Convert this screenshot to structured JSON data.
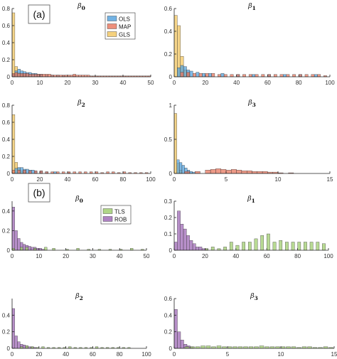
{
  "panel_labels": [
    "(a)",
    "(b)"
  ],
  "colors": {
    "OLS": "#4f9fdc",
    "MAP": "#e8735a",
    "GLS": "#f2c55c",
    "TLS": "#9ccc6a",
    "ROB": "#9b64b4"
  },
  "chart_data": [
    {
      "type": "bar",
      "group": "a",
      "title": "β",
      "subscript": "0",
      "xlim": [
        0,
        50
      ],
      "ylim": [
        0,
        0.8
      ],
      "xticks": [
        0,
        10,
        20,
        30,
        40,
        50
      ],
      "yticks": [
        0,
        0.2,
        0.4,
        0.6,
        0.8
      ],
      "ytick_labels": [
        "0",
        "0.2",
        "0.4",
        "0.6",
        "0.8"
      ],
      "legend": [
        "OLS",
        "MAP",
        "GLS"
      ],
      "legend_position": "top-right",
      "series": [
        {
          "name": "GLS",
          "bins": [
            0,
            1,
            2,
            3,
            4
          ],
          "width": 1,
          "values": [
            0.75,
            0.12,
            0.05,
            0.03,
            0.02
          ]
        },
        {
          "name": "OLS",
          "bins": [
            0,
            1,
            2,
            3,
            4,
            5,
            6,
            7,
            8,
            9,
            10,
            12,
            14,
            16,
            18,
            22
          ],
          "width": 1,
          "values": [
            0.03,
            0.07,
            0.09,
            0.07,
            0.06,
            0.05,
            0.05,
            0.04,
            0.04,
            0.03,
            0.03,
            0.02,
            0.02,
            0.02,
            0.015,
            0.01
          ]
        },
        {
          "name": "MAP",
          "bins": [
            0,
            1,
            2,
            3,
            4,
            5,
            6,
            7,
            8,
            9,
            10,
            11,
            12,
            13,
            14,
            15,
            16,
            17,
            18,
            19,
            20,
            21,
            22,
            23,
            24,
            25,
            26,
            27,
            28,
            29,
            30,
            31,
            32,
            33,
            34,
            35,
            36,
            37,
            38,
            39,
            40,
            41,
            42,
            43,
            44,
            45,
            46,
            47,
            48,
            49
          ],
          "width": 1,
          "values": [
            0.04,
            0.05,
            0.04,
            0.04,
            0.04,
            0.04,
            0.03,
            0.03,
            0.03,
            0.03,
            0.03,
            0.03,
            0.03,
            0.03,
            0.02,
            0.02,
            0.02,
            0.02,
            0.02,
            0.02,
            0.02,
            0.02,
            0.03,
            0.02,
            0.02,
            0.02,
            0.02,
            0.02,
            0.01,
            0.01,
            0.01,
            0.01,
            0.01,
            0.01,
            0.01,
            0.01,
            0.01,
            0.01,
            0.01,
            0.01,
            0.01,
            0.01,
            0.01,
            0.01,
            0.01,
            0.01,
            0.01,
            0.01,
            0.01,
            0.01
          ]
        }
      ]
    },
    {
      "type": "bar",
      "group": "a",
      "title": "β",
      "subscript": "1",
      "xlim": [
        0,
        100
      ],
      "ylim": [
        0,
        0.6
      ],
      "xticks": [
        0,
        20,
        40,
        60,
        80,
        100
      ],
      "yticks": [
        0,
        0.2,
        0.4,
        0.6
      ],
      "ytick_labels": [
        "0",
        "0.2",
        "0.4",
        "0.6"
      ],
      "legend": [],
      "series": [
        {
          "name": "GLS",
          "bins": [
            0,
            2,
            4,
            6,
            8
          ],
          "width": 2,
          "values": [
            0.54,
            0.45,
            0.18,
            0.06,
            0.03
          ]
        },
        {
          "name": "OLS",
          "bins": [
            2,
            4,
            6,
            8,
            10,
            14,
            18,
            22,
            30,
            40,
            50,
            60,
            70,
            80,
            90
          ],
          "width": 2,
          "values": [
            0.08,
            0.1,
            0.09,
            0.06,
            0.05,
            0.04,
            0.03,
            0.03,
            0.03,
            0.02,
            0.02,
            0.02,
            0.02,
            0.02,
            0.02
          ]
        },
        {
          "name": "MAP",
          "bins": [
            4,
            8,
            12,
            16,
            20,
            24,
            28,
            32,
            36,
            40,
            44,
            48,
            52,
            56,
            60,
            64,
            68,
            72,
            76,
            80,
            84,
            88,
            92,
            96
          ],
          "width": 2,
          "values": [
            0.04,
            0.04,
            0.03,
            0.03,
            0.03,
            0.03,
            0.02,
            0.02,
            0.02,
            0.02,
            0.02,
            0.02,
            0.02,
            0.02,
            0.02,
            0.02,
            0.02,
            0.02,
            0.02,
            0.02,
            0.02,
            0.02,
            0.02,
            0.01
          ]
        }
      ]
    },
    {
      "type": "bar",
      "group": "a",
      "title": "β",
      "subscript": "2",
      "xlim": [
        0,
        100
      ],
      "ylim": [
        0,
        0.8
      ],
      "xticks": [
        0,
        20,
        40,
        60,
        80,
        100
      ],
      "yticks": [
        0,
        0.2,
        0.4,
        0.6,
        0.8
      ],
      "ytick_labels": [
        "0",
        "0.2",
        "0.4",
        "0.6",
        "0.8"
      ],
      "legend": [],
      "series": [
        {
          "name": "GLS",
          "bins": [
            0,
            2,
            4,
            6,
            8
          ],
          "width": 2,
          "values": [
            0.69,
            0.13,
            0.06,
            0.03,
            0.02
          ]
        },
        {
          "name": "OLS",
          "bins": [
            2,
            4,
            6,
            8,
            10,
            12,
            14,
            16,
            20,
            24,
            30,
            40
          ],
          "width": 2,
          "values": [
            0.06,
            0.07,
            0.07,
            0.05,
            0.05,
            0.04,
            0.04,
            0.03,
            0.03,
            0.02,
            0.02,
            0.01
          ]
        },
        {
          "name": "MAP",
          "bins": [
            0,
            4,
            8,
            12,
            16,
            20,
            24,
            28,
            32,
            36,
            40,
            44,
            48,
            52,
            56,
            60,
            64,
            68,
            72,
            76,
            80,
            84,
            88,
            92,
            96
          ],
          "width": 2,
          "values": [
            0.04,
            0.04,
            0.04,
            0.03,
            0.03,
            0.03,
            0.02,
            0.02,
            0.02,
            0.02,
            0.02,
            0.02,
            0.02,
            0.02,
            0.02,
            0.02,
            0.01,
            0.02,
            0.02,
            0.01,
            0.02,
            0.01,
            0.01,
            0.01,
            0.01
          ]
        }
      ]
    },
    {
      "type": "bar",
      "group": "a",
      "title": "β",
      "subscript": "3",
      "xlim": [
        0,
        15
      ],
      "ylim": [
        0,
        1
      ],
      "xticks": [
        0,
        5,
        10,
        15
      ],
      "yticks": [
        0,
        0.5,
        1
      ],
      "ytick_labels": [
        "0",
        "0.5",
        "1"
      ],
      "legend": [],
      "series": [
        {
          "name": "GLS",
          "bins": [
            0,
            0.25,
            0.5
          ],
          "width": 0.25,
          "values": [
            0.88,
            0.15,
            0.05
          ]
        },
        {
          "name": "OLS",
          "bins": [
            0.25,
            0.5,
            0.75,
            1,
            1.25,
            1.5,
            1.75
          ],
          "width": 0.25,
          "values": [
            0.2,
            0.16,
            0.12,
            0.08,
            0.05,
            0.03,
            0.02
          ]
        },
        {
          "name": "MAP",
          "bins": [
            1,
            2,
            3,
            3.5,
            4,
            4.5,
            5,
            5.5,
            6,
            6.5,
            7,
            7.5,
            8,
            8.5,
            9,
            9.5,
            10,
            11
          ],
          "width": 0.5,
          "values": [
            0.03,
            0.03,
            0.05,
            0.06,
            0.07,
            0.06,
            0.05,
            0.06,
            0.05,
            0.04,
            0.04,
            0.03,
            0.03,
            0.03,
            0.02,
            0.02,
            0.01,
            0.01
          ]
        }
      ]
    },
    {
      "type": "bar",
      "group": "b",
      "title": "β",
      "subscript": "0",
      "xlim": [
        0,
        50
      ],
      "ylim": [
        0,
        0.5
      ],
      "xticks": [
        0,
        10,
        20,
        30,
        40,
        50
      ],
      "yticks": [
        0,
        0.2,
        0.4
      ],
      "ytick_labels": [
        "0",
        "0.2",
        "0.4"
      ],
      "legend": [
        "TLS",
        "ROB"
      ],
      "legend_position": "top-right",
      "series": [
        {
          "name": "ROB",
          "bins": [
            0,
            1,
            2,
            3,
            4,
            5,
            6,
            7,
            8,
            9,
            10,
            11
          ],
          "width": 1,
          "values": [
            0.44,
            0.2,
            0.12,
            0.08,
            0.06,
            0.05,
            0.04,
            0.03,
            0.03,
            0.02,
            0.02,
            0.01
          ]
        },
        {
          "name": "TLS",
          "bins": [
            0,
            3,
            5,
            8,
            12,
            15,
            20,
            24,
            28,
            32,
            36,
            40,
            44,
            48
          ],
          "width": 1,
          "values": [
            0.02,
            0.03,
            0.03,
            0.02,
            0.03,
            0.02,
            0.01,
            0.02,
            0.01,
            0.01,
            0.01,
            0.01,
            0.02,
            0.01
          ]
        }
      ]
    },
    {
      "type": "bar",
      "group": "b",
      "title": "β",
      "subscript": "1",
      "xlim": [
        0,
        100
      ],
      "ylim": [
        0,
        0.3
      ],
      "xticks": [
        0,
        20,
        40,
        60,
        80,
        100
      ],
      "yticks": [
        0,
        0.1,
        0.2,
        0.3
      ],
      "ytick_labels": [
        "0",
        "0.1",
        "0.2",
        "0.3"
      ],
      "legend": [],
      "series": [
        {
          "name": "ROB",
          "bins": [
            0,
            2,
            4,
            6,
            8,
            10,
            12,
            14,
            16,
            18,
            20
          ],
          "width": 2,
          "values": [
            0.05,
            0.24,
            0.16,
            0.13,
            0.09,
            0.06,
            0.04,
            0.02,
            0.02,
            0.01,
            0.01
          ]
        },
        {
          "name": "TLS",
          "bins": [
            20,
            24,
            28,
            32,
            36,
            40,
            44,
            48,
            52,
            56,
            60,
            64,
            68,
            72,
            76,
            80,
            84,
            88,
            92,
            96
          ],
          "width": 2,
          "values": [
            0.01,
            0.02,
            0.01,
            0.02,
            0.05,
            0.03,
            0.05,
            0.05,
            0.07,
            0.09,
            0.1,
            0.05,
            0.06,
            0.05,
            0.05,
            0.05,
            0.05,
            0.05,
            0.05,
            0.04
          ]
        }
      ]
    },
    {
      "type": "bar",
      "group": "b",
      "title": "β",
      "subscript": "2",
      "xlim": [
        0,
        100
      ],
      "ylim": [
        0,
        0.6
      ],
      "xticks": [
        0,
        20,
        40,
        60,
        80,
        100
      ],
      "yticks": [
        0,
        0.2,
        0.4
      ],
      "ytick_labels": [
        "0",
        "0.2",
        "0.4"
      ],
      "legend": [],
      "series": [
        {
          "name": "ROB",
          "bins": [
            0,
            2,
            4,
            6,
            8,
            10,
            12,
            14,
            16
          ],
          "width": 2,
          "values": [
            0.48,
            0.15,
            0.08,
            0.05,
            0.04,
            0.03,
            0.02,
            0.02,
            0.01
          ]
        },
        {
          "name": "TLS",
          "bins": [
            6,
            10,
            14,
            18,
            22,
            26,
            30,
            34,
            38,
            42,
            46,
            50,
            54,
            58,
            62,
            66,
            70,
            74,
            78,
            82,
            86
          ],
          "width": 2,
          "values": [
            0.02,
            0.03,
            0.02,
            0.01,
            0.02,
            0.01,
            0.01,
            0.01,
            0.01,
            0.02,
            0.01,
            0.01,
            0.01,
            0.01,
            0.02,
            0.01,
            0.01,
            0.01,
            0.01,
            0.01,
            0.01
          ]
        }
      ]
    },
    {
      "type": "bar",
      "group": "b",
      "title": "β",
      "subscript": "3",
      "xlim": [
        0,
        15
      ],
      "ylim": [
        0,
        0.6
      ],
      "xticks": [
        0,
        5,
        10,
        15
      ],
      "yticks": [
        0,
        0.2,
        0.4,
        0.6
      ],
      "ytick_labels": [
        "0",
        "0.2",
        "0.4",
        "0.6"
      ],
      "legend": [],
      "series": [
        {
          "name": "ROB",
          "bins": [
            0,
            0.3,
            0.6,
            0.9,
            1.2,
            1.5
          ],
          "width": 0.3,
          "values": [
            0.47,
            0.2,
            0.1,
            0.05,
            0.03,
            0.02
          ]
        },
        {
          "name": "TLS",
          "bins": [
            1,
            1.5,
            2,
            2.5,
            3,
            3.5,
            4,
            4.5,
            5,
            5.5,
            6,
            6.5,
            7,
            7.5,
            8,
            8.5,
            9,
            9.5,
            10,
            10.5,
            11,
            11.5,
            12,
            12.5,
            13,
            13.5,
            14,
            14.5
          ],
          "width": 0.4,
          "values": [
            0.02,
            0.02,
            0.02,
            0.03,
            0.03,
            0.02,
            0.03,
            0.02,
            0.02,
            0.02,
            0.02,
            0.02,
            0.02,
            0.02,
            0.03,
            0.02,
            0.02,
            0.02,
            0.02,
            0.02,
            0.02,
            0.01,
            0.02,
            0.02,
            0.01,
            0.01,
            0.02,
            0.01
          ]
        }
      ]
    }
  ]
}
